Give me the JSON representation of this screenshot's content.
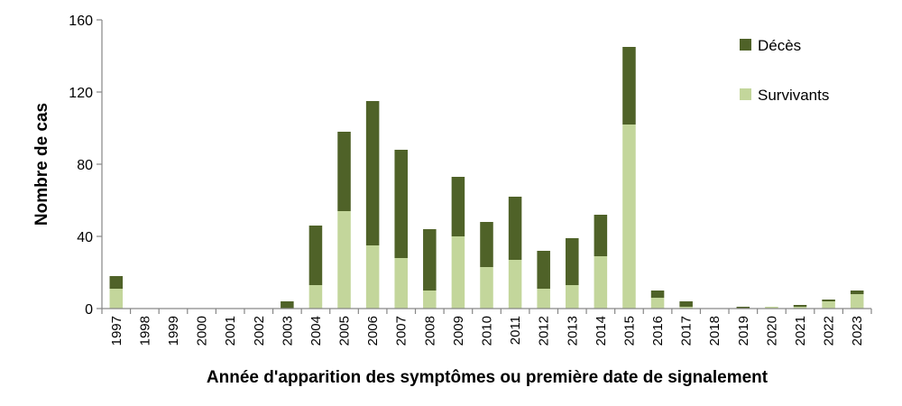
{
  "chart_data": {
    "type": "bar",
    "stacked": true,
    "title": "",
    "xlabel": "Année d'apparition des symptômes ou première date de signalement",
    "ylabel": "Nombre de cas",
    "ylim": [
      0,
      160
    ],
    "yticks": [
      "0",
      "40",
      "80",
      "120",
      "160"
    ],
    "grid": false,
    "legend_position": "top-right",
    "categories": [
      "1997",
      "1998",
      "1999",
      "2000",
      "2001",
      "2002",
      "2003",
      "2004",
      "2005",
      "2006",
      "2007",
      "2008",
      "2009",
      "2010",
      "2011",
      "2012",
      "2013",
      "2014",
      "2015",
      "2016",
      "2017",
      "2018",
      "2019",
      "2020",
      "2021",
      "2022",
      "2023"
    ],
    "series": [
      {
        "name": "Survivants",
        "color": "#c3d69b",
        "values": [
          11,
          0,
          0,
          0,
          0,
          0,
          0,
          13,
          54,
          35,
          28,
          10,
          40,
          23,
          27,
          11,
          13,
          29,
          102,
          6,
          1,
          0,
          0,
          1,
          1,
          4,
          8
        ]
      },
      {
        "name": "Décès",
        "color": "#4f6228",
        "values": [
          7,
          0,
          0,
          0,
          0,
          0,
          4,
          33,
          44,
          80,
          60,
          34,
          33,
          25,
          35,
          21,
          26,
          23,
          43,
          4,
          3,
          0,
          1,
          0,
          1,
          1,
          2
        ]
      }
    ]
  }
}
